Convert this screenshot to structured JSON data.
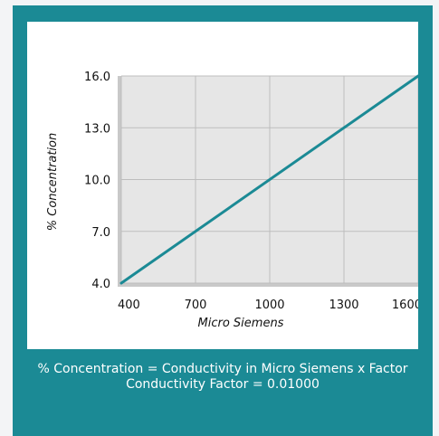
{
  "chart_data": {
    "type": "line",
    "xlabel": "Micro Siemens",
    "ylabel": "% Concentration",
    "xlim": [
      400,
      1600
    ],
    "ylim": [
      4.0,
      16.0
    ],
    "x_ticks": [
      "400",
      "700",
      "1000",
      "1300",
      "1600"
    ],
    "y_ticks": [
      "16.0",
      "13.0",
      "10.0",
      "7.0",
      "4.0"
    ],
    "x": [
      400,
      1600
    ],
    "y": [
      4.0,
      16.0
    ],
    "grid": true,
    "colors": {
      "line": "#1b8a95",
      "plot_background": "#e6e6e6",
      "grid": "#bdbdbd"
    }
  },
  "caption": {
    "line1": "% Concentration = Conductivity in Micro Siemens x Factor",
    "line2": "Conductivity Factor = 0.01000"
  }
}
